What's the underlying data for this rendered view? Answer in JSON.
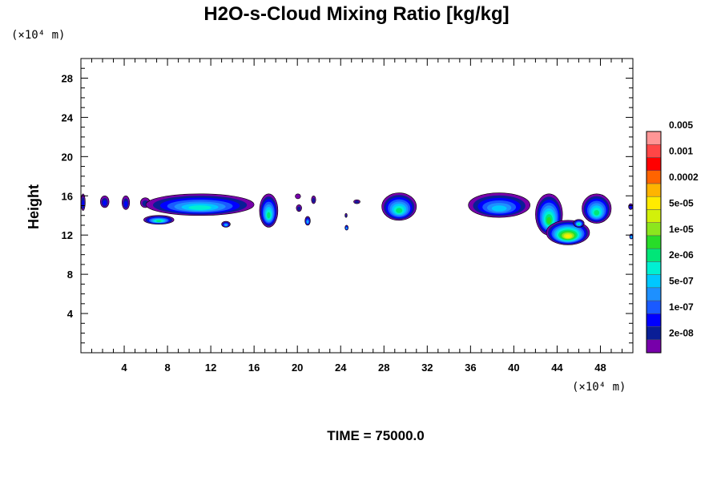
{
  "chart_data": {
    "type": "heatmap",
    "title": "H2O-s-Cloud Mixing Ratio [kg/kg]",
    "ylabel": "Height",
    "xlabel": "",
    "x_unit": "(×10⁴ m)",
    "y_unit": "(×10⁴ m)",
    "xlim": [
      0,
      51
    ],
    "ylim": [
      0,
      30
    ],
    "x_ticks": [
      4,
      8,
      12,
      16,
      20,
      24,
      28,
      32,
      36,
      40,
      44,
      48
    ],
    "y_ticks": [
      4,
      8,
      12,
      16,
      20,
      24,
      28
    ],
    "grid": false,
    "colorbar": {
      "placement": "right",
      "colors": [
        "#7700aa",
        "#0a1e96",
        "#0000ff",
        "#1a5aff",
        "#1e90ff",
        "#00c8ff",
        "#00f0d2",
        "#00e678",
        "#28dc28",
        "#8ce61e",
        "#d2f00a",
        "#ffeb00",
        "#ffb400",
        "#ff6400",
        "#ff0000",
        "#ff4646",
        "#ff9696"
      ],
      "labels": [
        "2e-08",
        "1e-07",
        "5e-07",
        "2e-06",
        "1e-05",
        "5e-05",
        "0.0002",
        "0.001",
        "0.005"
      ]
    },
    "cloud_regions": [
      {
        "x": [
          0,
          0.4
        ],
        "y": [
          14.5,
          16.2
        ],
        "max_level": 3
      },
      {
        "x": [
          1.8,
          2.6
        ],
        "y": [
          14.8,
          16.0
        ],
        "max_level": 3
      },
      {
        "x": [
          3.8,
          4.5
        ],
        "y": [
          14.6,
          16.0
        ],
        "max_level": 3
      },
      {
        "x": [
          5.5,
          6.4
        ],
        "y": [
          14.8,
          15.8
        ],
        "max_level": 2
      },
      {
        "x": [
          6.0,
          16.0
        ],
        "y": [
          14.0,
          16.2
        ],
        "max_level": 7
      },
      {
        "x": [
          5.8,
          8.6
        ],
        "y": [
          13.1,
          14.0
        ],
        "max_level": 8
      },
      {
        "x": [
          13.0,
          13.8
        ],
        "y": [
          12.8,
          13.4
        ],
        "max_level": 6
      },
      {
        "x": [
          16.5,
          18.2
        ],
        "y": [
          12.8,
          16.2
        ],
        "max_level": 8
      },
      {
        "x": [
          19.8,
          20.3
        ],
        "y": [
          15.7,
          16.2
        ],
        "max_level": 1
      },
      {
        "x": [
          19.9,
          20.4
        ],
        "y": [
          14.4,
          15.1
        ],
        "max_level": 2
      },
      {
        "x": [
          20.7,
          21.2
        ],
        "y": [
          13.0,
          13.9
        ],
        "max_level": 6
      },
      {
        "x": [
          21.3,
          21.7
        ],
        "y": [
          15.2,
          16.0
        ],
        "max_level": 2
      },
      {
        "x": [
          24.4,
          24.6
        ],
        "y": [
          13.8,
          14.2
        ],
        "max_level": 2
      },
      {
        "x": [
          24.4,
          24.7
        ],
        "y": [
          12.5,
          13.0
        ],
        "max_level": 6
      },
      {
        "x": [
          25.2,
          25.8
        ],
        "y": [
          15.2,
          15.6
        ],
        "max_level": 2
      },
      {
        "x": [
          27.8,
          31.0
        ],
        "y": [
          13.5,
          16.3
        ],
        "max_level": 8
      },
      {
        "x": [
          35.8,
          41.5
        ],
        "y": [
          13.8,
          16.3
        ],
        "max_level": 6
      },
      {
        "x": [
          42.0,
          44.5
        ],
        "y": [
          12.0,
          16.2
        ],
        "max_level": 9
      },
      {
        "x": [
          43.0,
          47.0
        ],
        "y": [
          11.0,
          13.5
        ],
        "max_level": 12
      },
      {
        "x": [
          45.5,
          46.5
        ],
        "y": [
          12.8,
          13.6
        ],
        "max_level": 8
      },
      {
        "x": [
          46.3,
          49.0
        ],
        "y": [
          13.2,
          16.2
        ],
        "max_level": 8
      },
      {
        "x": [
          50.6,
          51.0
        ],
        "y": [
          14.6,
          15.2
        ],
        "max_level": 3
      },
      {
        "x": [
          50.7,
          51.0
        ],
        "y": [
          11.6,
          12.1
        ],
        "max_level": 7
      }
    ]
  },
  "footer": {
    "time_label": "TIME = 75000.0"
  }
}
